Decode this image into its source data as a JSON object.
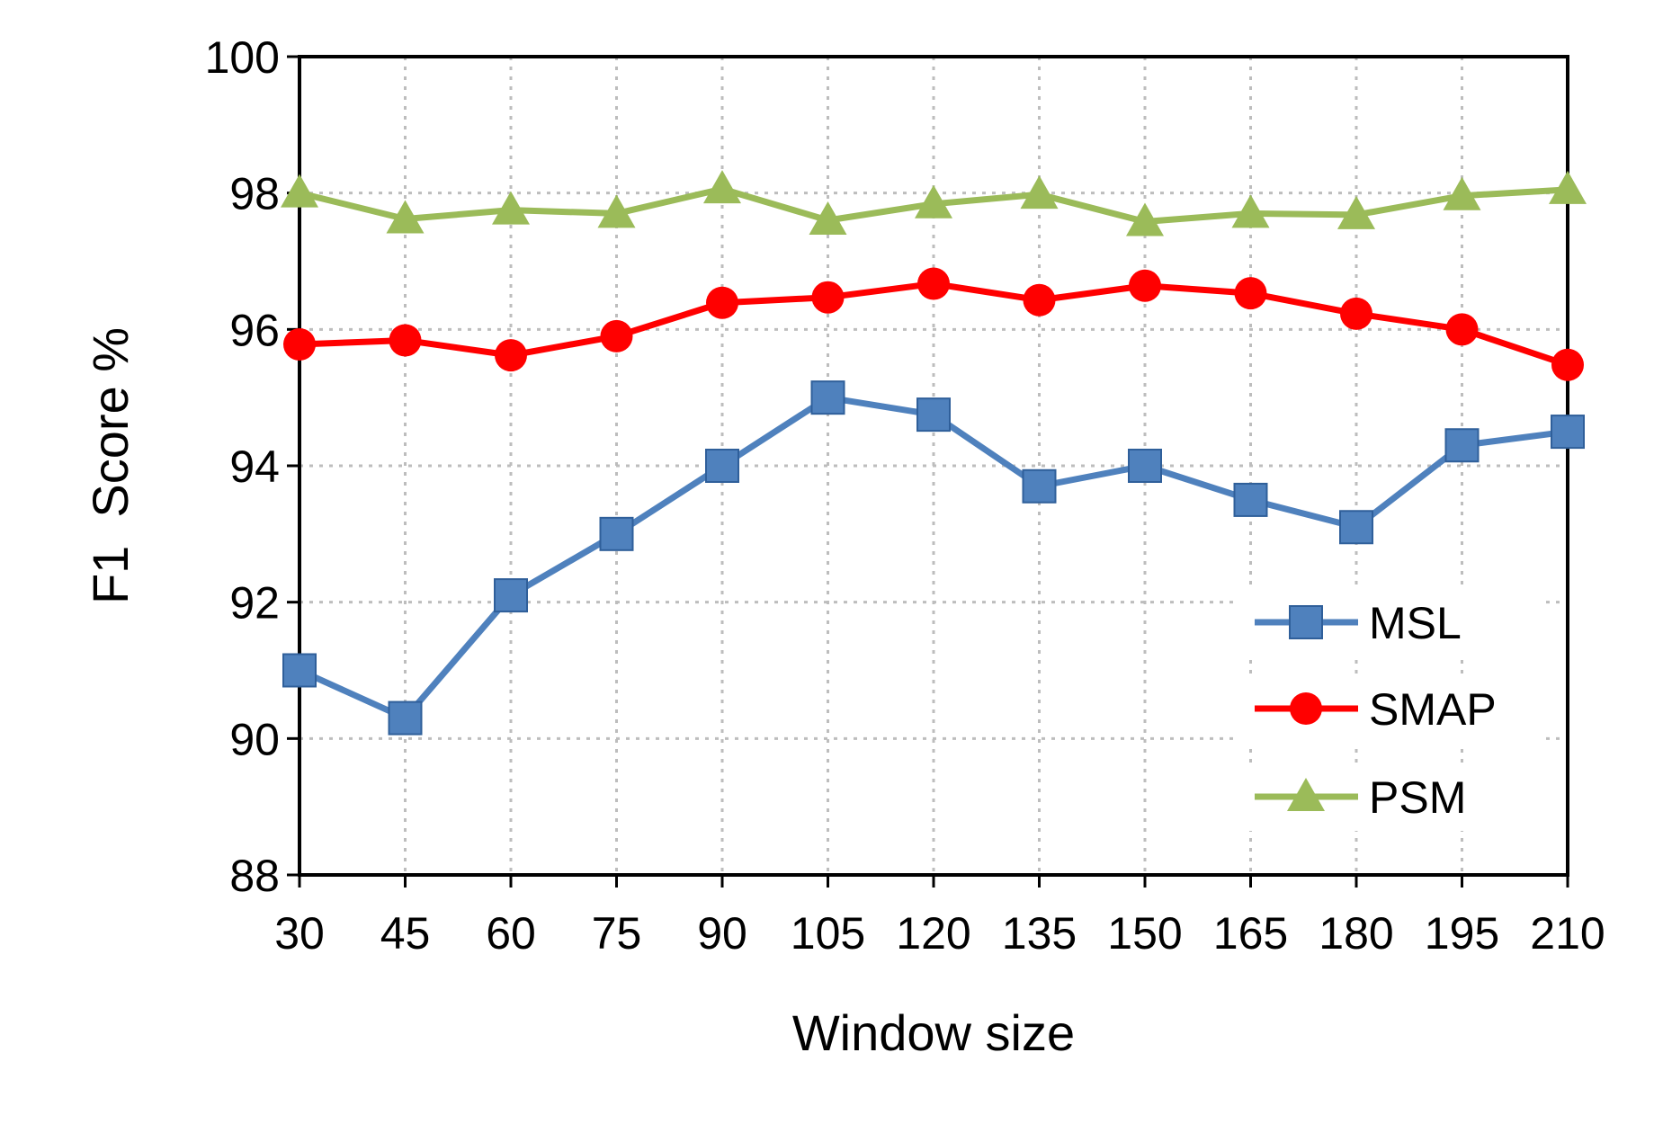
{
  "chart_data": {
    "type": "line",
    "xlabel": "Window size",
    "ylabel": "F1  Score %",
    "x": [
      30,
      45,
      60,
      75,
      90,
      105,
      120,
      135,
      150,
      165,
      180,
      195,
      210
    ],
    "xlim": [
      30,
      210
    ],
    "ylim": [
      88,
      100
    ],
    "yticks": [
      88,
      90,
      92,
      94,
      96,
      98,
      100
    ],
    "grid": true,
    "legend_position": "right",
    "series": [
      {
        "name": "MSL",
        "color": "#4f81bd",
        "marker": "square",
        "values": [
          91.0,
          90.3,
          92.1,
          93.0,
          94.0,
          95.0,
          94.75,
          93.7,
          94.0,
          93.5,
          93.1,
          94.3,
          94.5
        ]
      },
      {
        "name": "SMAP",
        "color": "#ff0000",
        "marker": "circle",
        "values": [
          95.78,
          95.84,
          95.62,
          95.9,
          96.39,
          96.47,
          96.67,
          96.43,
          96.64,
          96.53,
          96.23,
          96.0,
          95.48
        ]
      },
      {
        "name": "PSM",
        "color": "#9bbb59",
        "marker": "triangle",
        "values": [
          98.0,
          97.62,
          97.75,
          97.7,
          98.06,
          97.6,
          97.84,
          97.98,
          97.58,
          97.7,
          97.68,
          97.96,
          98.05
        ]
      }
    ]
  }
}
